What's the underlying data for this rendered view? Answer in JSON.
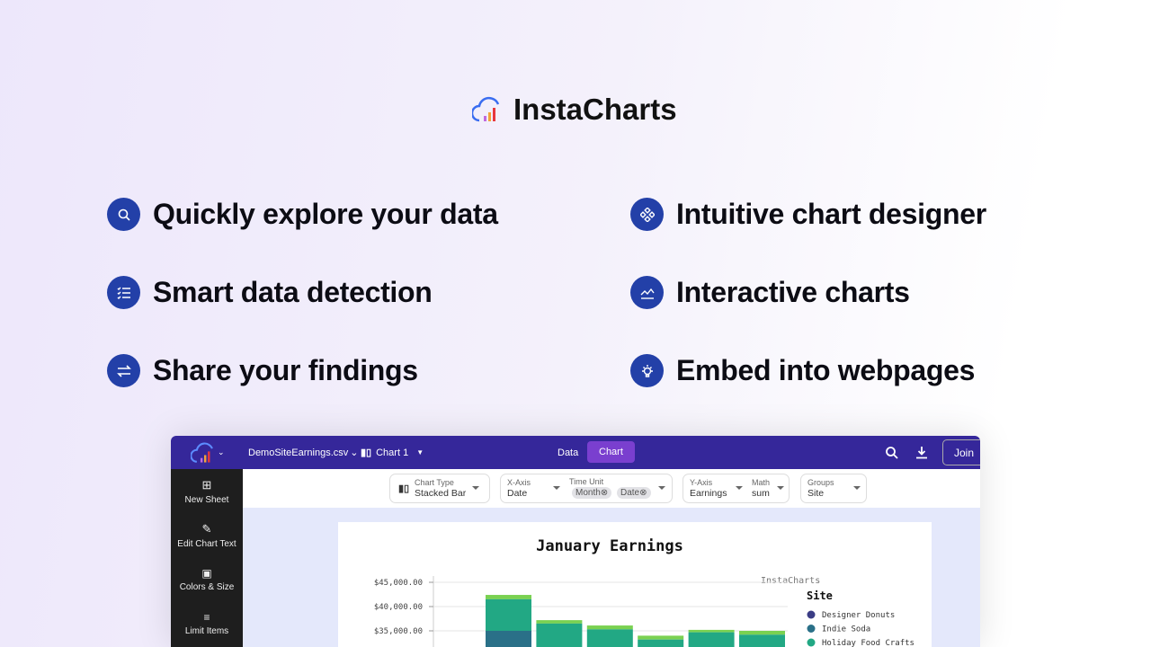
{
  "brand": {
    "name": "InstaCharts"
  },
  "features": [
    {
      "icon": "search-icon",
      "label": "Quickly explore your data"
    },
    {
      "icon": "checklist-icon",
      "label": "Smart data detection"
    },
    {
      "icon": "swap-arrows-icon",
      "label": "Share your findings"
    },
    {
      "icon": "components-icon",
      "label": "Intuitive chart designer"
    },
    {
      "icon": "area-chart-icon",
      "label": "Interactive charts"
    },
    {
      "icon": "lightbulb-icon",
      "label": "Embed into webpages"
    }
  ],
  "app": {
    "file": "DemoSiteEarnings.csv",
    "chart_name": "Chart 1",
    "tabs": [
      {
        "label": "Data",
        "active": false
      },
      {
        "label": "Chart",
        "active": true
      }
    ],
    "join": "Join",
    "sidebar": [
      "New Sheet",
      "Edit Chart Text",
      "Colors & Size",
      "Limit Items"
    ],
    "toolbar": {
      "chart_type_label": "Chart Type",
      "chart_type": "Stacked Bar",
      "xaxis_label": "X-Axis",
      "xaxis": "Date",
      "time_unit_label": "Time Unit",
      "time_units": [
        "Month",
        "Date"
      ],
      "yaxis_label": "Y-Axis",
      "yaxis": "Earnings",
      "math_label": "Math",
      "math": "sum",
      "groups_label": "Groups",
      "groups": "Site"
    },
    "colors": {
      "header": "#35279a",
      "accent": "#2340a8",
      "active_tab": "#7a3fcf"
    }
  },
  "chart_data": {
    "type": "bar",
    "stacked": true,
    "title": "January Earnings",
    "watermark": "InstaCharts",
    "y_ticks": [
      "$45,000.00",
      "$40,000.00",
      "$35,000.00"
    ],
    "y_tick_values": [
      45000,
      40000,
      35000
    ],
    "legend_title": "Site",
    "legend_position": "right",
    "grid": true,
    "series": [
      {
        "name": "Designer Donuts",
        "color": "#3b3d85",
        "tops": [
          null,
          null,
          null,
          null,
          null,
          null
        ]
      },
      {
        "name": "Indie Soda",
        "color": "#2a7088",
        "tops": [
          35000,
          null,
          null,
          null,
          null,
          null
        ]
      },
      {
        "name": "Holiday Food Crafts",
        "color": "#22a884",
        "tops": [
          41500,
          36500,
          35300,
          33200,
          34700,
          34200
        ]
      },
      {
        "color": "#7ad151",
        "tops": [
          42400,
          37200,
          36100,
          34000,
          35200,
          35000
        ]
      }
    ]
  }
}
